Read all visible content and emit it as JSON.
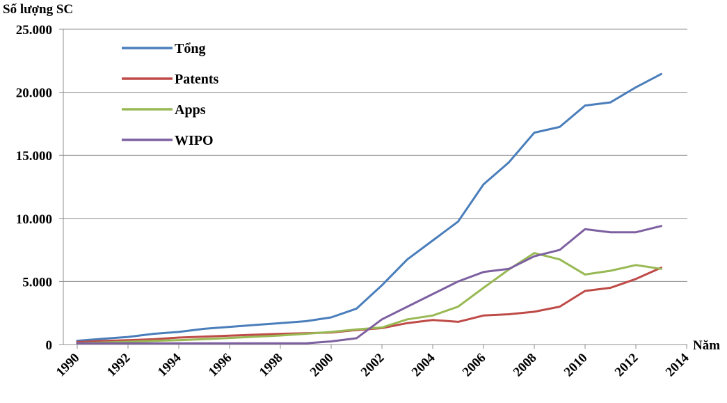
{
  "chart_data": {
    "type": "line",
    "ylabel": "Số lượng SC",
    "xlabel": "Năm",
    "ylim": [
      0,
      25000
    ],
    "xlim": [
      1990,
      2014
    ],
    "y_ticks": [
      0,
      5000,
      10000,
      15000,
      20000,
      25000
    ],
    "y_tick_labels": [
      "0",
      "5.000",
      "10.000",
      "15.000",
      "20.000",
      "25.000"
    ],
    "x_ticks": [
      1990,
      1992,
      1994,
      1996,
      1998,
      2000,
      2002,
      2004,
      2006,
      2008,
      2010,
      2012,
      2014
    ],
    "x_tick_labels": [
      "1990",
      "1992",
      "1994",
      "1996",
      "1998",
      "2000",
      "2002",
      "2004",
      "2006",
      "2008",
      "2010",
      "2012",
      "2014"
    ],
    "grid": "horizontal",
    "legend_position": "top-left",
    "series": [
      {
        "name": "Tổng",
        "color": "#4a7ebb",
        "x": [
          1990,
          1991,
          1992,
          1993,
          1994,
          1995,
          1996,
          1997,
          1998,
          1999,
          2000,
          2001,
          2002,
          2003,
          2004,
          2005,
          2006,
          2007,
          2008,
          2009,
          2010,
          2011,
          2012,
          2013
        ],
        "values": [
          300,
          450,
          600,
          850,
          1000,
          1250,
          1400,
          1550,
          1700,
          1850,
          2150,
          2850,
          4700,
          6750,
          8250,
          9750,
          12700,
          14450,
          16800,
          17250,
          18950,
          19200,
          20400,
          21450
        ]
      },
      {
        "name": "Patents",
        "color": "#be4b48",
        "x": [
          1990,
          1991,
          1992,
          1993,
          1994,
          1995,
          1996,
          1997,
          1998,
          1999,
          2000,
          2001,
          2002,
          2003,
          2004,
          2005,
          2006,
          2007,
          2008,
          2009,
          2010,
          2011,
          2012,
          2013
        ],
        "values": [
          200,
          280,
          350,
          420,
          550,
          630,
          700,
          780,
          850,
          900,
          950,
          1150,
          1300,
          1700,
          1950,
          1800,
          2300,
          2400,
          2600,
          3000,
          4250,
          4500,
          5200,
          6100
        ]
      },
      {
        "name": "Apps",
        "color": "#98b954",
        "x": [
          1990,
          1991,
          1992,
          1993,
          1994,
          1995,
          1996,
          1997,
          1998,
          1999,
          2000,
          2001,
          2002,
          2003,
          2004,
          2005,
          2006,
          2007,
          2008,
          2009,
          2010,
          2011,
          2012,
          2013
        ],
        "values": [
          100,
          160,
          220,
          290,
          350,
          430,
          520,
          620,
          720,
          850,
          1000,
          1200,
          1350,
          2000,
          2300,
          3000,
          4500,
          5950,
          7250,
          6750,
          5550,
          5850,
          6300,
          6000
        ]
      },
      {
        "name": "WIPO",
        "color": "#7d60a0",
        "x": [
          1990,
          1991,
          1992,
          1993,
          1994,
          1995,
          1996,
          1997,
          1998,
          1999,
          2000,
          2001,
          2002,
          2003,
          2004,
          2005,
          2006,
          2007,
          2008,
          2009,
          2010,
          2011,
          2012,
          2013
        ],
        "values": [
          100,
          100,
          100,
          100,
          100,
          100,
          100,
          100,
          100,
          100,
          250,
          500,
          2000,
          3000,
          4000,
          5000,
          5750,
          6000,
          7000,
          7500,
          9150,
          8900,
          8900,
          9400
        ]
      }
    ]
  }
}
